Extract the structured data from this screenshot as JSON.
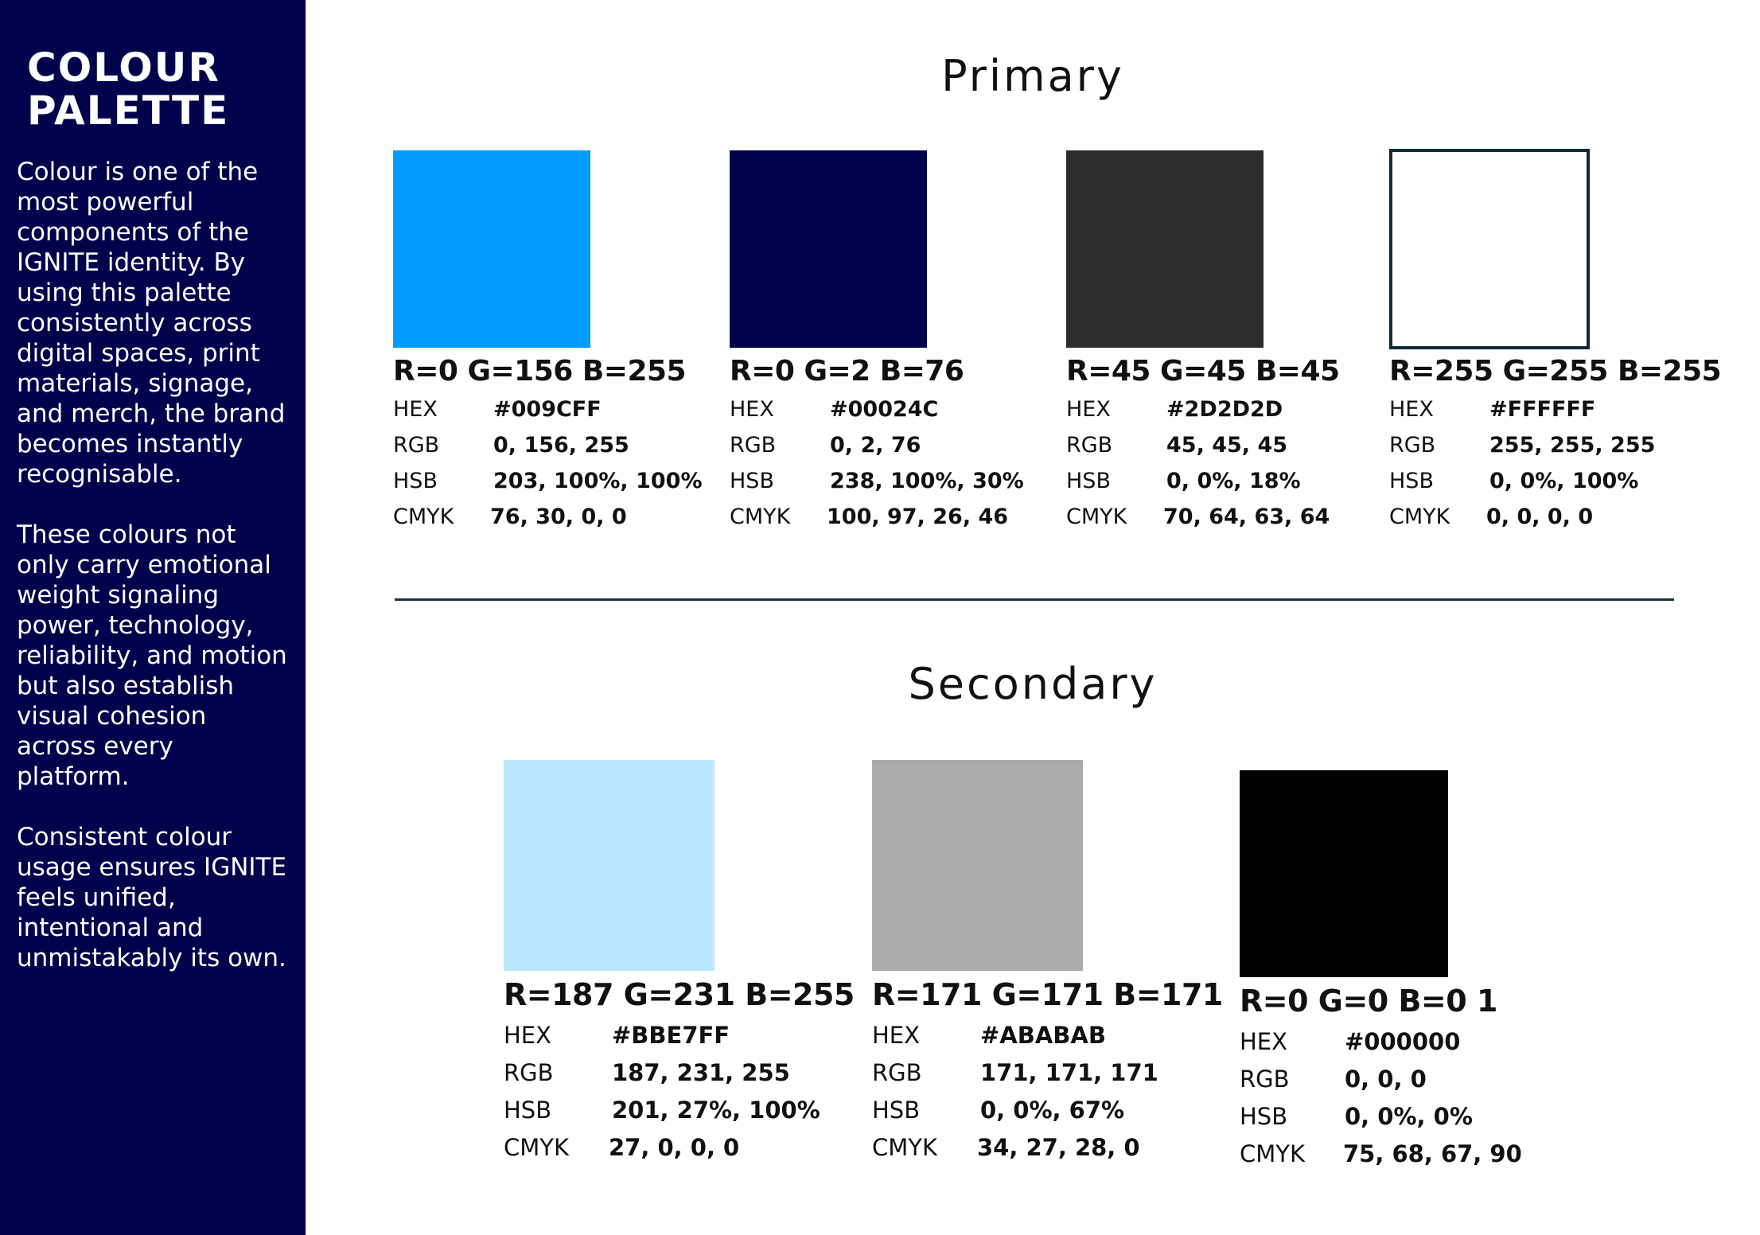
{
  "sidebar": {
    "title_line1": "COLOUR",
    "title_line2": "PALETTE",
    "paragraphs": [
      "Colour is one of the most powerful components of the IGNITE identity. By using this palette consistently across digital spaces, print materials, signage, and merch, the brand becomes instantly recognisable.",
      "These colours not only carry emotional weight  signaling power, technology, reliability, and motion but also establish visual cohesion across every platform.",
      "Consistent colour usage ensures IGNITE feels unified, intentional and unmistakably its own."
    ]
  },
  "primary": {
    "title": "Primary",
    "swatches": [
      {
        "color": "#009CFF",
        "rgb_heading": "R=0 G=156 B=255",
        "hex": "#009CFF",
        "rgb": "0, 156, 255",
        "hsb": "203, 100%, 100%",
        "cmyk": "76, 30, 0, 0"
      },
      {
        "color": "#00024C",
        "rgb_heading": "R=0 G=2 B=76",
        "hex": "#00024C",
        "rgb": "0, 2, 76",
        "hsb": "238, 100%, 30%",
        "cmyk": "100, 97, 26, 46"
      },
      {
        "color": "#2D2D2D",
        "rgb_heading": "R=45 G=45 B=45",
        "hex": "#2D2D2D",
        "rgb": "45, 45, 45",
        "hsb": "0, 0%, 18%",
        "cmyk": "70, 64, 63, 64"
      },
      {
        "color": "#FFFFFF",
        "rgb_heading": "R=255 G=255 B=255",
        "hex": "#FFFFFF",
        "rgb": "255, 255, 255",
        "hsb": "0, 0%, 100%",
        "cmyk": "0, 0, 0, 0"
      }
    ]
  },
  "secondary": {
    "title": "Secondary",
    "swatches": [
      {
        "color": "#BBE7FF",
        "rgb_heading": "R=187 G=231 B=255",
        "hex": "#BBE7FF",
        "rgb": "187, 231, 255",
        "hsb": "201, 27%, 100%",
        "cmyk": "27, 0, 0, 0"
      },
      {
        "color": "#ABABAB",
        "rgb_heading": "R=171 G=171 B=171",
        "hex": "#ABABAB",
        "rgb": "171, 171, 171",
        "hsb": "0, 0%, 67%",
        "cmyk": "34, 27, 28, 0"
      },
      {
        "color": "#000000",
        "rgb_heading": "R=0 G=0 B=0 1",
        "hex": "#000000",
        "rgb": "0, 0, 0",
        "hsb": "0, 0%, 0%",
        "cmyk": "75, 68, 67, 90"
      }
    ]
  },
  "labels": {
    "hex": "HEX",
    "rgb": "RGB",
    "hsb": "HSB",
    "cmyk": "CMYK"
  }
}
